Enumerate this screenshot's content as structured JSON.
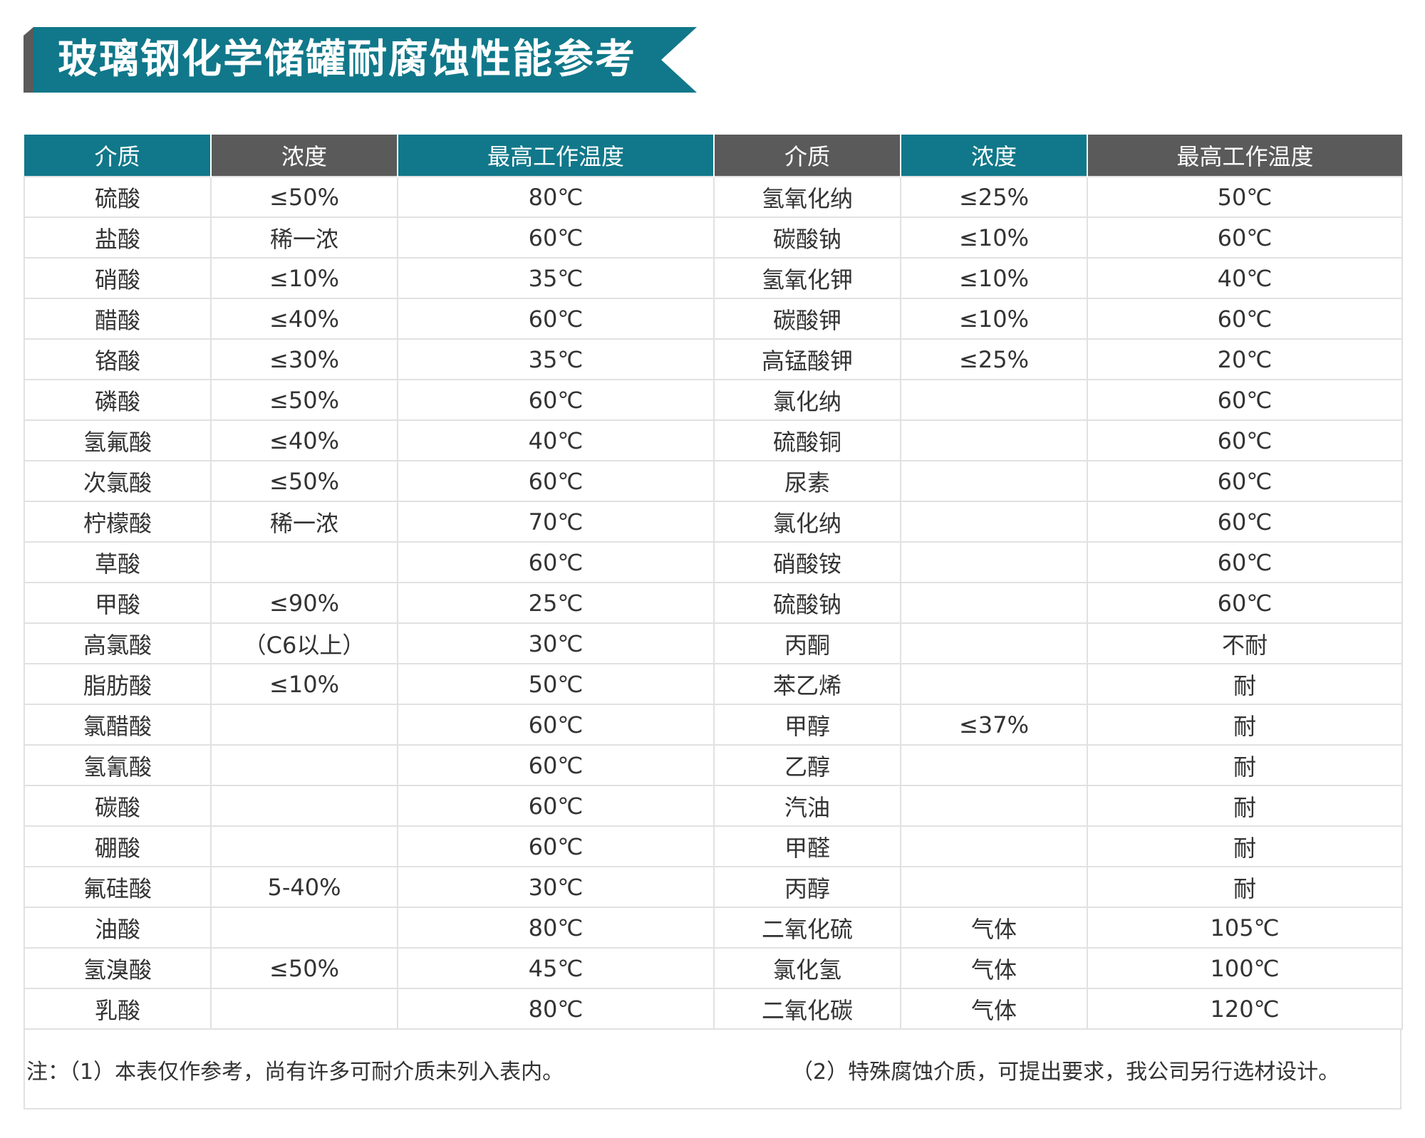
{
  "title": "玻璃钢化学储罐耐腐蚀性能参考",
  "colors": {
    "teal": "#10788a",
    "dark_grey": "#5a5a5a",
    "grid_line": "#e1e1e1"
  },
  "table": {
    "headers": [
      {
        "label": "介质",
        "color": "teal"
      },
      {
        "label": "浓度",
        "color": "grey"
      },
      {
        "label": "最高工作温度",
        "color": "teal"
      },
      {
        "label": "介质",
        "color": "grey"
      },
      {
        "label": "浓度",
        "color": "teal"
      },
      {
        "label": "最高工作温度",
        "color": "grey"
      }
    ],
    "rows": [
      [
        "硫酸",
        "≤50%",
        "80℃",
        "氢氧化纳",
        "≤25%",
        "50℃"
      ],
      [
        "盐酸",
        "稀一浓",
        "60℃",
        "碳酸钠",
        "≤10%",
        "60℃"
      ],
      [
        "硝酸",
        "≤10%",
        "35℃",
        "氢氧化钾",
        "≤10%",
        "40℃"
      ],
      [
        "醋酸",
        "≤40%",
        "60℃",
        "碳酸钾",
        "≤10%",
        "60℃"
      ],
      [
        "铬酸",
        "≤30%",
        "35℃",
        "高锰酸钾",
        "≤25%",
        "20℃"
      ],
      [
        "磷酸",
        "≤50%",
        "60℃",
        "氯化纳",
        "",
        "60℃"
      ],
      [
        "氢氟酸",
        "≤40%",
        "40℃",
        "硫酸铜",
        "",
        "60℃"
      ],
      [
        "次氯酸",
        "≤50%",
        "60℃",
        "尿素",
        "",
        "60℃"
      ],
      [
        "柠檬酸",
        "稀一浓",
        "70℃",
        "氯化纳",
        "",
        "60℃"
      ],
      [
        "草酸",
        "",
        "60℃",
        "硝酸铵",
        "",
        "60℃"
      ],
      [
        "甲酸",
        "≤90%",
        "25℃",
        "硫酸钠",
        "",
        "60℃"
      ],
      [
        "高氯酸",
        "（C6以上）",
        "30℃",
        "丙酮",
        "",
        "不耐"
      ],
      [
        "脂肪酸",
        "≤10%",
        "50℃",
        "苯乙烯",
        "",
        "耐"
      ],
      [
        "氯醋酸",
        "",
        "60℃",
        "甲醇",
        "≤37%",
        "耐"
      ],
      [
        "氢氰酸",
        "",
        "60℃",
        "乙醇",
        "",
        "耐"
      ],
      [
        "碳酸",
        "",
        "60℃",
        "汽油",
        "",
        "耐"
      ],
      [
        "硼酸",
        "",
        "60℃",
        "甲醛",
        "",
        "耐"
      ],
      [
        "氟硅酸",
        "5-40%",
        "30℃",
        "丙醇",
        "",
        "耐"
      ],
      [
        "油酸",
        "",
        "80℃",
        "二氧化硫",
        "气体",
        "105℃"
      ],
      [
        "氢溴酸",
        "≤50%",
        "45℃",
        "氯化氢",
        "气体",
        "100℃"
      ],
      [
        "乳酸",
        "",
        "80℃",
        "二氧化碳",
        "气体",
        "120℃"
      ]
    ]
  },
  "notes": {
    "left": "注：（1）本表仅作参考，尚有许多可耐介质未列入表内。",
    "right": "（2）特殊腐蚀介质，可提出要求，我公司另行选材设计。"
  }
}
